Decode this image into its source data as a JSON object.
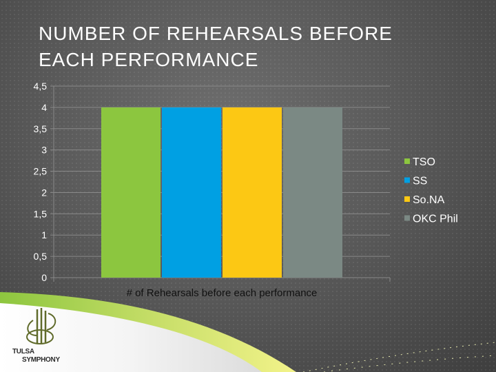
{
  "slide": {
    "title_lines": [
      "NUMBER OF REHEARSALS BEFORE",
      "EACH PERFORMANCE"
    ]
  },
  "logo": {
    "line1": "TULSA",
    "line2": "SYMPHONY"
  },
  "colors": {
    "background": "#5a5a5a",
    "TSO": "#8cc63f",
    "SS": "#00a0e3",
    "SoNA": "#fcc814",
    "OKC Phil": "#7b8984",
    "accent_green": "#8dc63f",
    "accent_yellow": "#f3f38a"
  },
  "chart_data": {
    "type": "bar",
    "title": "",
    "categories": [
      "# of Rehearsals before each performance"
    ],
    "series": [
      {
        "name": "TSO",
        "values": [
          4
        ],
        "color": "#8cc63f"
      },
      {
        "name": "SS",
        "values": [
          4
        ],
        "color": "#00a0e3"
      },
      {
        "name": "So.NA",
        "values": [
          4
        ],
        "color": "#fcc814"
      },
      {
        "name": "OKC Phil",
        "values": [
          4
        ],
        "color": "#7b8984"
      }
    ],
    "y_ticks": [
      "0",
      "0,5",
      "1",
      "1,5",
      "2",
      "2,5",
      "3",
      "3,5",
      "4",
      "4,5"
    ],
    "ylim": [
      0,
      4.5
    ],
    "xlabel": "",
    "ylabel": "",
    "grid": true,
    "legend_position": "right"
  }
}
